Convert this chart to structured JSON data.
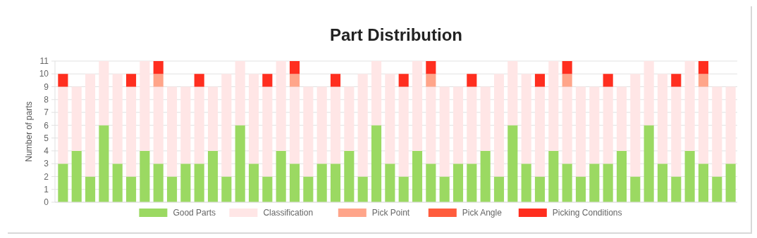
{
  "chart_data": {
    "type": "bar",
    "title": "Part Distribution",
    "ylabel": "Number of parts",
    "stacked": true,
    "grid": "y",
    "legend": "bottom",
    "categories": [
      null,
      null,
      null,
      null,
      null,
      null,
      null,
      null,
      null,
      null,
      null,
      null,
      null,
      null,
      null,
      null,
      null,
      null,
      null,
      null,
      null,
      null,
      null,
      null,
      null,
      null,
      null,
      null,
      null,
      null,
      null,
      null,
      null,
      null,
      null,
      null,
      null,
      null,
      null,
      null,
      null,
      null,
      null,
      null,
      null,
      null,
      null,
      null,
      null,
      null
    ],
    "ylim": [
      0,
      11
    ],
    "yticks": [
      0,
      1,
      2,
      3,
      4,
      5,
      6,
      7,
      8,
      9,
      10,
      11
    ],
    "series": [
      {
        "name": "Good Parts",
        "color": "#9bd962",
        "values": [
          3,
          4,
          2,
          6,
          3,
          2,
          4,
          3,
          2,
          3,
          3,
          4,
          2,
          6,
          3,
          2,
          4,
          3,
          2,
          3,
          3,
          4,
          2,
          6,
          3,
          2,
          4,
          3,
          2,
          3,
          3,
          4,
          2,
          6,
          3,
          2,
          4,
          3,
          2,
          3,
          3,
          4,
          2,
          6,
          3,
          2,
          4,
          3,
          2,
          3
        ]
      },
      {
        "name": "Classification",
        "color": "#ffe6e6",
        "values": [
          6,
          5,
          8,
          5,
          7,
          7,
          7,
          6,
          7,
          6,
          6,
          5,
          8,
          5,
          7,
          7,
          7,
          6,
          7,
          6,
          6,
          5,
          8,
          5,
          7,
          7,
          7,
          6,
          7,
          6,
          6,
          5,
          8,
          5,
          7,
          7,
          7,
          6,
          7,
          6,
          6,
          5,
          8,
          5,
          7,
          7,
          7,
          6,
          7,
          6
        ]
      },
      {
        "name": "Pick Point",
        "color": "#ffa58a",
        "values": [
          0,
          0,
          0,
          0,
          0,
          0,
          0,
          1,
          0,
          0,
          0,
          0,
          0,
          0,
          0,
          0,
          0,
          1,
          0,
          0,
          0,
          0,
          0,
          0,
          0,
          0,
          0,
          1,
          0,
          0,
          0,
          0,
          0,
          0,
          0,
          0,
          0,
          1,
          0,
          0,
          0,
          0,
          0,
          0,
          0,
          0,
          0,
          1,
          0,
          0
        ]
      },
      {
        "name": "Pick Angle",
        "color": "#ff5c3d",
        "values": [
          0,
          0,
          0,
          0,
          0,
          0,
          0,
          0,
          0,
          0,
          0,
          0,
          0,
          0,
          0,
          0,
          0,
          0,
          0,
          0,
          0,
          0,
          0,
          0,
          0,
          0,
          0,
          0,
          0,
          0,
          0,
          0,
          0,
          0,
          0,
          0,
          0,
          0,
          0,
          0,
          0,
          0,
          0,
          0,
          0,
          0,
          0,
          0,
          0,
          0
        ]
      },
      {
        "name": "Picking Conditions",
        "color": "#ff2e1f",
        "values": [
          1,
          0,
          0,
          0,
          0,
          1,
          0,
          1,
          0,
          0,
          1,
          0,
          0,
          0,
          0,
          1,
          0,
          1,
          0,
          0,
          1,
          0,
          0,
          0,
          0,
          1,
          0,
          1,
          0,
          0,
          1,
          0,
          0,
          0,
          0,
          1,
          0,
          1,
          0,
          0,
          1,
          0,
          0,
          0,
          0,
          1,
          0,
          1,
          0,
          0
        ]
      }
    ]
  }
}
